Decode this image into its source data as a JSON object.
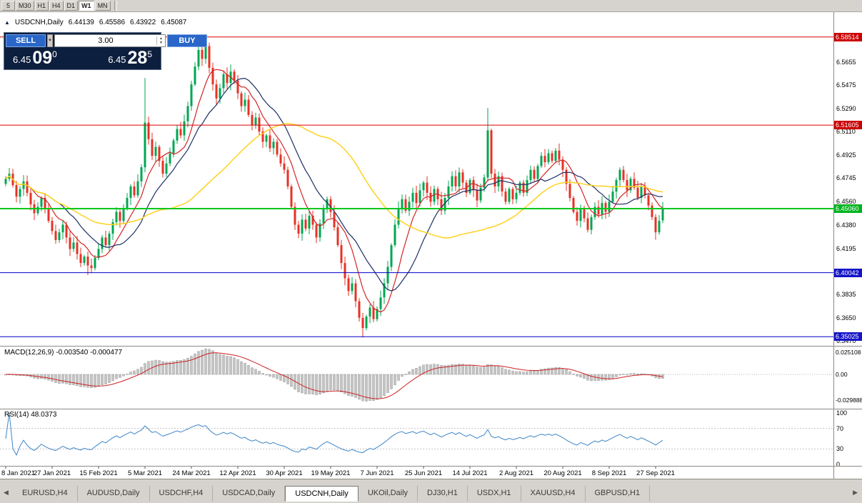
{
  "toolbar": {
    "periods": [
      {
        "label": "5",
        "active": false
      },
      {
        "label": "M30",
        "active": false
      },
      {
        "label": "H1",
        "active": false
      },
      {
        "label": "H4",
        "active": false
      },
      {
        "label": "D1",
        "active": false
      },
      {
        "label": "W1",
        "active": true
      },
      {
        "label": "MN",
        "active": false
      }
    ]
  },
  "icons": {
    "toggle": "▲",
    "dropdown": "▼",
    "spinner_up": "▲",
    "spinner_down": "▼",
    "tab_left": "◀",
    "tab_right": "▶"
  },
  "header": {
    "symbol": "USDCNH,Daily",
    "open": "6.44139",
    "high": "6.45586",
    "low": "6.43922",
    "close": "6.45087"
  },
  "trade_panel": {
    "sell_label": "SELL",
    "buy_label": "BUY",
    "volume": "3.00",
    "sell_price": {
      "prefix": "6.45",
      "pips": "09",
      "sup": "0"
    },
    "buy_price": {
      "prefix": "6.45",
      "pips": "28",
      "sup": "5"
    }
  },
  "macd_panel": {
    "label": "MACD(12,26,9) -0.003540 -0.000477"
  },
  "rsi_panel": {
    "label": "RSI(14) 48.0373"
  },
  "tabs": {
    "items": [
      {
        "label": "EURUSD,H4",
        "active": false
      },
      {
        "label": "AUDUSD,Daily",
        "active": false
      },
      {
        "label": "USDCHF,H4",
        "active": false
      },
      {
        "label": "USDCAD,Daily",
        "active": false
      },
      {
        "label": "USDCNH,Daily",
        "active": true
      },
      {
        "label": "UKOil,Daily",
        "active": false
      },
      {
        "label": "DJ30,H1",
        "active": false
      },
      {
        "label": "USDX,H1",
        "active": false
      },
      {
        "label": "XAUUSD,H4",
        "active": false
      },
      {
        "label": "GBPUSD,H1",
        "active": false
      }
    ]
  },
  "chart_data": {
    "type": "candlestick",
    "symbol": "USDCNH",
    "timeframe": "Daily",
    "x_tick_labels": [
      "8 Jan 2021",
      "27 Jan 2021",
      "15 Feb 2021",
      "5 Mar 2021",
      "24 Mar 2021",
      "12 Apr 2021",
      "30 Apr 2021",
      "19 May 2021",
      "7 Jun 2021",
      "25 Jun 2021",
      "14 Jul 2021",
      "2 Aug 2021",
      "20 Aug 2021",
      "8 Sep 2021",
      "27 Sep 2021"
    ],
    "x_tick_indices": [
      0,
      13,
      26,
      39,
      52,
      65,
      78,
      91,
      104,
      117,
      130,
      143,
      156,
      169,
      182
    ],
    "first_open": 6.47,
    "closes": [
      6.474,
      6.478,
      6.469,
      6.46,
      6.466,
      6.472,
      6.463,
      6.454,
      6.447,
      6.452,
      6.459,
      6.45,
      6.441,
      6.433,
      6.426,
      6.432,
      6.438,
      6.428,
      6.419,
      6.424,
      6.415,
      6.408,
      6.413,
      6.406,
      6.404,
      6.412,
      6.419,
      6.428,
      6.422,
      6.431,
      6.44,
      6.448,
      6.441,
      6.451,
      6.459,
      6.468,
      6.461,
      6.472,
      6.483,
      6.518,
      6.505,
      6.492,
      6.499,
      6.488,
      6.478,
      6.486,
      6.494,
      6.504,
      6.513,
      6.508,
      6.519,
      6.531,
      6.548,
      6.562,
      6.575,
      6.568,
      6.578,
      6.561,
      6.548,
      6.537,
      6.545,
      6.556,
      6.549,
      6.558,
      6.551,
      6.541,
      6.531,
      6.536,
      6.524,
      6.516,
      6.522,
      6.511,
      6.503,
      6.508,
      6.498,
      6.503,
      6.493,
      6.486,
      6.481,
      6.468,
      6.452,
      6.438,
      6.431,
      6.442,
      6.435,
      6.445,
      6.438,
      6.428,
      6.439,
      6.45,
      6.458,
      6.448,
      6.436,
      6.422,
      6.408,
      6.396,
      6.386,
      6.392,
      6.378,
      6.365,
      6.357,
      6.366,
      6.373,
      6.364,
      6.372,
      6.381,
      6.392,
      6.405,
      6.422,
      6.438,
      6.451,
      6.458,
      6.449,
      6.456,
      6.463,
      6.455,
      6.465,
      6.471,
      6.463,
      6.456,
      6.466,
      6.458,
      6.449,
      6.459,
      6.468,
      6.476,
      6.468,
      6.479,
      6.471,
      6.463,
      6.473,
      6.465,
      6.457,
      6.467,
      6.475,
      6.512,
      6.478,
      6.468,
      6.476,
      6.464,
      6.456,
      6.466,
      6.458,
      6.463,
      6.471,
      6.463,
      6.473,
      6.481,
      6.474,
      6.484,
      6.492,
      6.487,
      6.494,
      6.488,
      6.496,
      6.489,
      6.481,
      6.47,
      6.459,
      6.448,
      6.441,
      6.451,
      6.443,
      6.434,
      6.444,
      6.452,
      6.446,
      6.455,
      6.448,
      6.456,
      6.464,
      6.473,
      6.481,
      6.473,
      6.465,
      6.474,
      6.467,
      6.459,
      6.468,
      6.461,
      6.453,
      6.444,
      6.432,
      6.441,
      6.451
    ],
    "last_ohlc": [
      6.44139,
      6.45586,
      6.43922,
      6.45087
    ],
    "wick_overrides": {
      "23": {
        "l": 6.3985
      },
      "39": {
        "h": 6.553
      },
      "54": {
        "h": 6.5852
      },
      "56": {
        "h": 6.5848
      },
      "100": {
        "l": 6.3495
      },
      "135": {
        "h": 6.5295
      },
      "182": {
        "l": 6.4262
      }
    },
    "y_axis_ticks": [
      "6.5655",
      "6.5475",
      "6.5290",
      "6.5110",
      "6.4925",
      "6.4745",
      "6.4560",
      "6.4380",
      "6.4195",
      "6.4015",
      "6.3835",
      "6.3650",
      "6.3470"
    ],
    "y_axis_values": [
      6.5655,
      6.5475,
      6.529,
      6.511,
      6.4925,
      6.4745,
      6.456,
      6.438,
      6.4195,
      6.4015,
      6.3835,
      6.365,
      6.347
    ],
    "levels": [
      {
        "price": 6.58514,
        "label": "6.58514",
        "color": "#dd0000",
        "tag_bg": "#cc0000",
        "width": 1
      },
      {
        "price": 6.51605,
        "label": "6.51605",
        "color": "#dd0000",
        "tag_bg": "#cc0000",
        "width": 1
      },
      {
        "price": 6.4506,
        "label": "6.45060",
        "color": "#00c81e",
        "tag_bg": "#00b41e",
        "width": 2
      },
      {
        "price": 6.40042,
        "label": "6.40042",
        "color": "#0000c8",
        "tag_bg": "#1414c8",
        "width": 1
      },
      {
        "price": 6.35025,
        "label": "6.35025",
        "color": "#0000c8",
        "tag_bg": "#1414c8",
        "width": 1
      }
    ],
    "moving_averages": [
      {
        "period": 8,
        "color": "#d42424"
      },
      {
        "period": 16,
        "color": "#1c2f66"
      },
      {
        "period": 45,
        "color": "#ffd21f"
      }
    ],
    "candle_up_color": "#00a651",
    "candle_down_color": "#e63226",
    "macd": {
      "fast": 12,
      "slow": 26,
      "signal": 9,
      "main_value": -0.00354,
      "signal_value": -0.000477,
      "hist_color": "#c4c4c4",
      "signal_color": "#cc2222",
      "axis_ticks": [
        "0.025108",
        "0.00",
        "-0.029888"
      ],
      "axis_values": [
        0.025108,
        0,
        -0.029888
      ]
    },
    "rsi": {
      "period": 14,
      "value": 48.0373,
      "color": "#3d85c8",
      "levels": [
        70,
        30
      ],
      "axis_ticks": [
        "100",
        "70",
        "30",
        "0"
      ],
      "axis_values": [
        100,
        70,
        30,
        0
      ]
    }
  }
}
